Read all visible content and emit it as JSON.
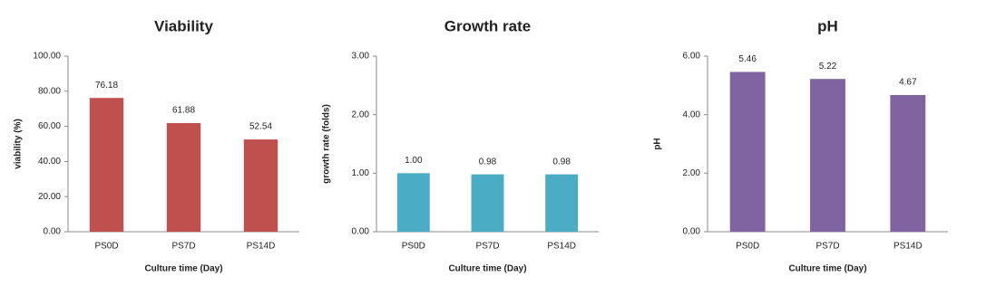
{
  "chart_data": [
    {
      "type": "bar",
      "title": "Viability",
      "x_label": "Culture time (Day)",
      "y_label": "viability (%)",
      "categories": [
        "PS0D",
        "PS7D",
        "PS14D"
      ],
      "values": [
        76.18,
        61.88,
        52.54
      ],
      "color": "#c0504d",
      "ylim": [
        0,
        100
      ],
      "yticks": [
        {
          "value": 0,
          "label": "0.00"
        },
        {
          "value": 20,
          "label": "20.00"
        },
        {
          "value": 40,
          "label": "40.00"
        },
        {
          "value": 60,
          "label": "60.00"
        },
        {
          "value": 80,
          "label": "80.00"
        },
        {
          "value": 100,
          "label": "100.00"
        }
      ]
    },
    {
      "type": "bar",
      "title": "Growth rate",
      "x_label": "Culture time (Day)",
      "y_label": "growth rate (folds)",
      "categories": [
        "PS0D",
        "PS7D",
        "PS14D"
      ],
      "values": [
        1,
        0.98,
        0.98
      ],
      "value_labels": [
        "1.00",
        "0.98",
        "0.98"
      ],
      "color": "#4bacc6",
      "ylim": [
        0,
        3
      ],
      "yticks": [
        {
          "value": 0,
          "label": "0.00"
        },
        {
          "value": 1,
          "label": "1.00"
        },
        {
          "value": 2,
          "label": "2.00"
        },
        {
          "value": 3,
          "label": "3.00"
        }
      ]
    },
    {
      "type": "bar",
      "title": "pH",
      "x_label": "Culture time (Day)",
      "y_label": "pH",
      "categories": [
        "PS0D",
        "PS7D",
        "PS14D"
      ],
      "values": [
        5.46,
        5.22,
        4.67
      ],
      "color": "#8064a2",
      "ylim": [
        0,
        6
      ],
      "yticks": [
        {
          "value": 0,
          "label": "0.00"
        },
        {
          "value": 2,
          "label": "2.00"
        },
        {
          "value": 4,
          "label": "4.00"
        },
        {
          "value": 6,
          "label": "6.00"
        }
      ]
    }
  ]
}
